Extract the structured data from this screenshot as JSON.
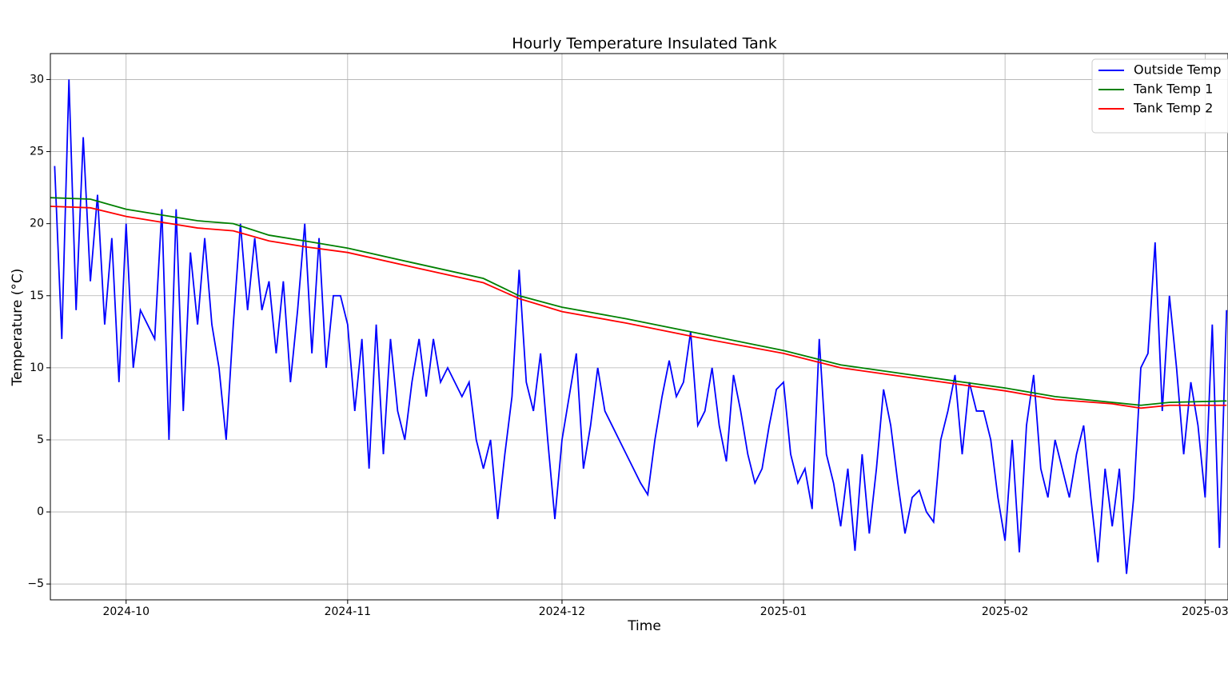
{
  "chart_data": {
    "type": "line",
    "title": "Hourly Temperature Insulated Tank",
    "xlabel": "Time",
    "ylabel": "Temperature (°C)",
    "xlim": [
      -10.6,
      154.2
    ],
    "xticks": [
      {
        "value": 0,
        "label": "2024-10"
      },
      {
        "value": 31,
        "label": "2024-11"
      },
      {
        "value": 61,
        "label": "2024-12"
      },
      {
        "value": 92,
        "label": "2025-01"
      },
      {
        "value": 123,
        "label": "2025-02"
      },
      {
        "value": 151,
        "label": "2025-03"
      }
    ],
    "ylim": [
      -6.1,
      31.8
    ],
    "yticks": [
      {
        "value": -5,
        "label": "−5"
      },
      0,
      5,
      10,
      15,
      20,
      25,
      30
    ],
    "grid": true,
    "legend": "upper right",
    "series": [
      {
        "name": "Outside Temp",
        "color": "#0000ff",
        "x": [
          -10,
          -9,
          -8,
          -7,
          -6,
          -5,
          -4,
          -3,
          -2,
          -1,
          0,
          1,
          2,
          3,
          4,
          5,
          6,
          7,
          8,
          9,
          10,
          11,
          12,
          13,
          14,
          15,
          16,
          17,
          18,
          19,
          20,
          21,
          22,
          23,
          24,
          25,
          26,
          27,
          28,
          29,
          30,
          31,
          32,
          33,
          34,
          35,
          36,
          37,
          38,
          39,
          40,
          41,
          42,
          43,
          44,
          45,
          46,
          47,
          48,
          49,
          50,
          51,
          52,
          53,
          54,
          55,
          56,
          57,
          58,
          59,
          60,
          61,
          62,
          63,
          64,
          65,
          66,
          67,
          68,
          69,
          70,
          71,
          72,
          73,
          74,
          75,
          76,
          77,
          78,
          79,
          80,
          81,
          82,
          83,
          84,
          85,
          86,
          87,
          88,
          89,
          90,
          91,
          92,
          93,
          94,
          95,
          96,
          97,
          98,
          99,
          100,
          101,
          102,
          103,
          104,
          105,
          106,
          107,
          108,
          109,
          110,
          111,
          112,
          113,
          114,
          115,
          116,
          117,
          118,
          119,
          120,
          121,
          122,
          123,
          124,
          125,
          126,
          127,
          128,
          129,
          130,
          131,
          132,
          133,
          134,
          135,
          136,
          137,
          138,
          139,
          140,
          141,
          142,
          143,
          144,
          145,
          146,
          147,
          148,
          149,
          150,
          151,
          152,
          153,
          154
        ],
        "values": [
          24,
          12,
          30,
          14,
          26,
          16,
          22,
          13,
          19,
          9,
          20,
          10,
          14,
          13,
          12,
          21,
          5,
          21,
          7,
          18,
          13,
          19,
          13,
          10,
          5,
          13,
          20,
          14,
          19,
          14,
          16,
          11,
          16,
          9,
          14,
          20,
          11,
          19,
          10,
          15,
          15,
          13,
          7,
          12,
          3,
          13,
          4,
          12,
          7,
          5,
          9,
          12,
          8,
          12,
          9,
          10,
          9,
          8,
          9,
          5,
          3,
          5,
          -0.5,
          4,
          8,
          16.8,
          9,
          7,
          11,
          5,
          -0.5,
          5,
          8,
          11,
          3,
          6,
          10,
          7,
          6,
          5,
          4,
          3,
          2,
          1.2,
          5,
          8,
          10.5,
          8,
          9,
          12.5,
          6,
          7,
          10,
          6,
          3.5,
          9.5,
          7,
          4,
          2,
          3,
          6,
          8.5,
          9,
          4,
          2,
          3,
          0.2,
          12,
          4,
          2,
          -1,
          3,
          -2.7,
          4,
          -1.5,
          3,
          8.5,
          6,
          2,
          -1.5,
          1,
          1.5,
          0,
          -0.7,
          5,
          7,
          9.5,
          4,
          9,
          7,
          7,
          5,
          1,
          -2,
          5,
          -2.8,
          6,
          9.5,
          3,
          1,
          5,
          3,
          1,
          4,
          6,
          1,
          -3.5,
          3,
          -1,
          3,
          -4.3,
          1,
          10,
          11,
          18.7,
          7,
          15,
          10,
          4,
          9,
          6,
          1,
          13,
          -2.5,
          14
        ]
      },
      {
        "name": "Tank Temp 1",
        "color": "#008000",
        "x": [
          -10.6,
          -5,
          0,
          5,
          10,
          15,
          20,
          25,
          31,
          40,
          50,
          55,
          61,
          70,
          80,
          92,
          100,
          110,
          123,
          130,
          138,
          142,
          146,
          154
        ],
        "values": [
          21.8,
          21.7,
          21.0,
          20.6,
          20.2,
          20.0,
          19.2,
          18.8,
          18.3,
          17.3,
          16.2,
          15.0,
          14.2,
          13.4,
          12.4,
          11.2,
          10.2,
          9.5,
          8.6,
          8.0,
          7.6,
          7.4,
          7.6,
          7.7
        ]
      },
      {
        "name": "Tank Temp 2",
        "color": "#ff0000",
        "x": [
          -10.6,
          -5,
          0,
          5,
          10,
          15,
          20,
          25,
          31,
          40,
          50,
          55,
          61,
          70,
          80,
          92,
          100,
          110,
          123,
          130,
          138,
          142,
          146,
          154
        ],
        "values": [
          21.2,
          21.1,
          20.5,
          20.1,
          19.7,
          19.5,
          18.8,
          18.4,
          18.0,
          17.0,
          15.9,
          14.8,
          13.9,
          13.1,
          12.1,
          11.0,
          10.0,
          9.3,
          8.4,
          7.8,
          7.5,
          7.2,
          7.4,
          7.4
        ]
      }
    ]
  }
}
